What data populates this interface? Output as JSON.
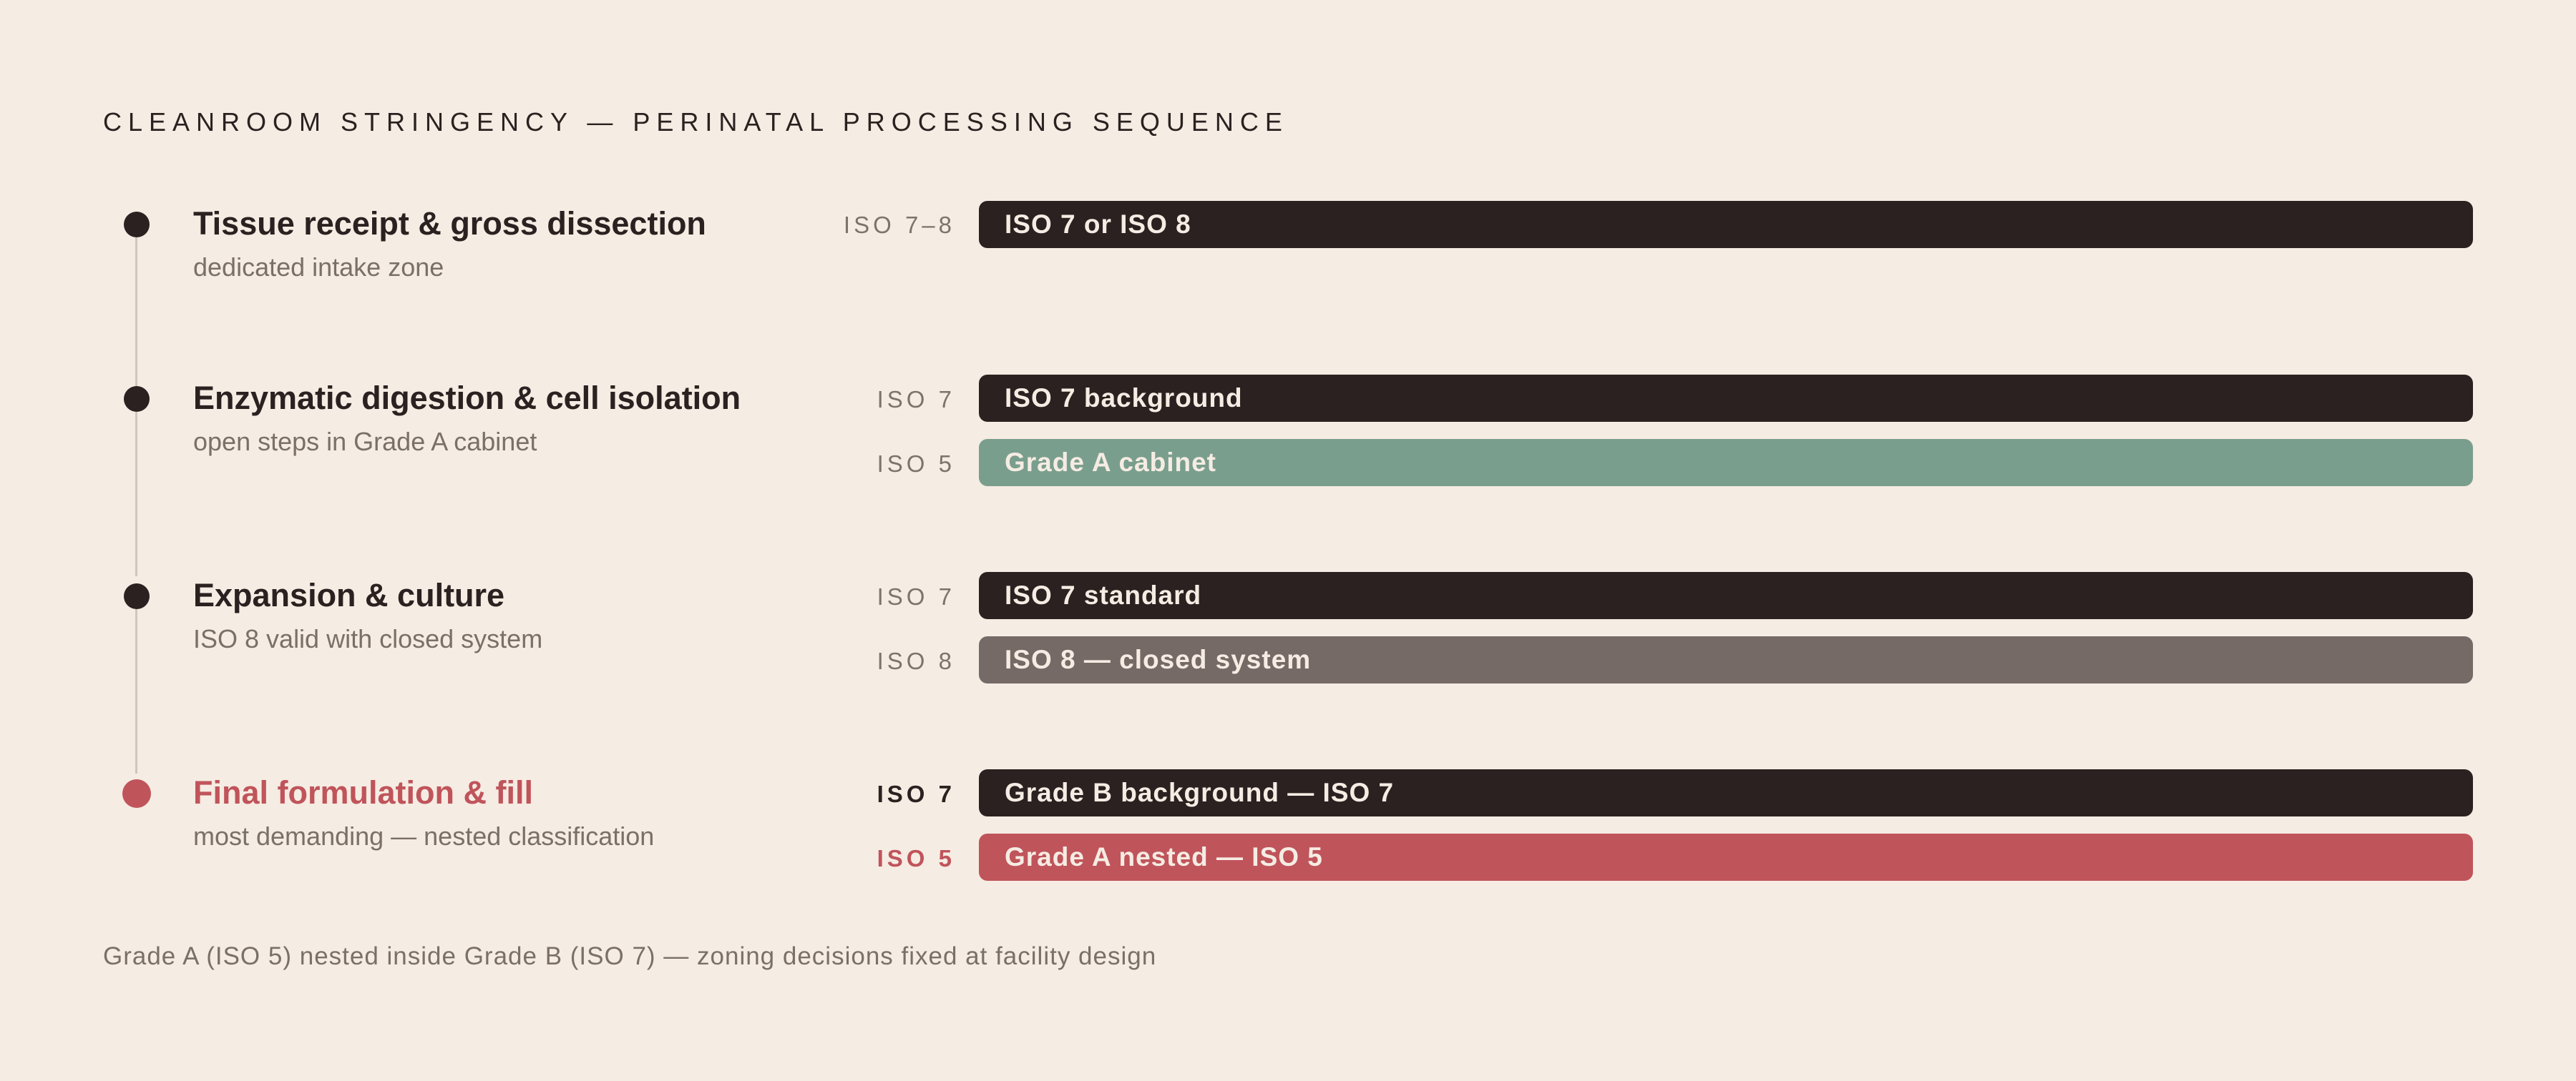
{
  "title": "CLEANROOM STRINGENCY — PERINATAL PROCESSING SEQUENCE",
  "colors": {
    "background": "#f5ece3",
    "dark": "#2b2120",
    "green": "#7a9e8d",
    "grey": "#756a66",
    "accent": "#c0545b"
  },
  "stages": [
    {
      "title": "Tissue receipt & gross dissection",
      "subtitle": "dedicated intake zone",
      "bars": [
        {
          "label": "ISO 7–8",
          "text": "ISO 7 or ISO 8",
          "color": "dark"
        }
      ]
    },
    {
      "title": "Enzymatic digestion & cell isolation",
      "subtitle": "open steps in Grade A cabinet",
      "bars": [
        {
          "label": "ISO 7",
          "text": "ISO 7 background",
          "color": "dark"
        },
        {
          "label": "ISO 5",
          "text": "Grade A cabinet",
          "color": "green"
        }
      ]
    },
    {
      "title": "Expansion & culture",
      "subtitle": "ISO 8 valid with closed system",
      "bars": [
        {
          "label": "ISO 7",
          "text": "ISO 7 standard",
          "color": "dark"
        },
        {
          "label": "ISO 8",
          "text": "ISO 8 — closed system",
          "color": "grey"
        }
      ]
    },
    {
      "title": "Final formulation & fill",
      "subtitle": "most demanding — nested classification",
      "bars": [
        {
          "label": "ISO 7",
          "text": "Grade B background — ISO 7",
          "color": "dark"
        },
        {
          "label": "ISO 5",
          "text": "Grade A nested — ISO 5",
          "color": "accent"
        }
      ]
    }
  ],
  "footnote": "Grade A (ISO 5) nested inside Grade B (ISO 7) — zoning decisions fixed at facility design"
}
